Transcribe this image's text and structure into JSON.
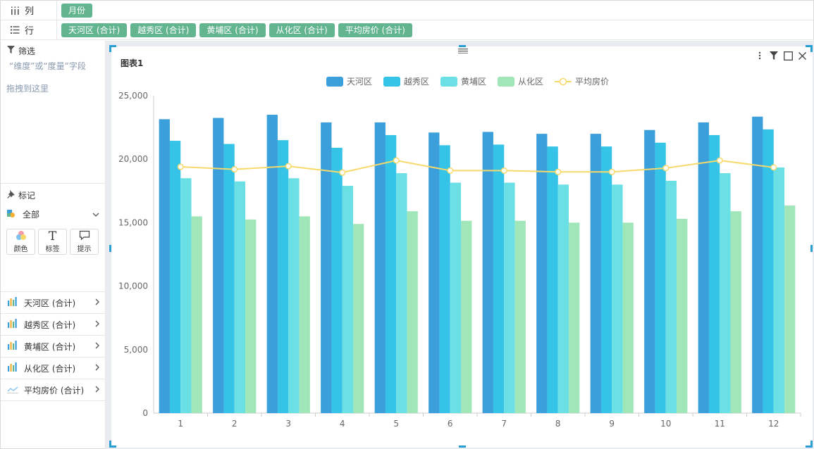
{
  "shelves": {
    "columns": {
      "label": "列",
      "pills": [
        "月份"
      ]
    },
    "rows": {
      "label": "行",
      "pills": [
        "天河区 (合计)",
        "越秀区 (合计)",
        "黄埔区 (合计)",
        "从化区 (合计)",
        "平均房价 (合计)"
      ]
    }
  },
  "filter": {
    "title": "筛选",
    "hint_line1": "“维度”或“度量”字段",
    "hint_line2": "拖拽到这里"
  },
  "marks": {
    "title": "标记",
    "all_label": "全部",
    "buttons": [
      {
        "label": "颜色",
        "icon": "palette-icon"
      },
      {
        "label": "标签",
        "icon": "text-icon"
      },
      {
        "label": "提示",
        "icon": "tooltip-icon"
      }
    ],
    "fields": [
      {
        "label": "天河区 (合计)",
        "icon": "bar-chart-icon"
      },
      {
        "label": "越秀区 (合计)",
        "icon": "bar-chart-icon"
      },
      {
        "label": "黄埔区 (合计)",
        "icon": "bar-chart-icon"
      },
      {
        "label": "从化区 (合计)",
        "icon": "bar-chart-icon"
      },
      {
        "label": "平均房价 (合计)",
        "icon": "line-chart-icon"
      }
    ]
  },
  "card": {
    "title": "图表1"
  },
  "colors": {
    "pill": "#62b58f",
    "handle": "#2a9fd6",
    "series": [
      "#3b9fdb",
      "#35c4e8",
      "#6ae0e4",
      "#a1e6b8"
    ],
    "line": "#f7d96b"
  },
  "chart_data": {
    "type": "bar",
    "categories": [
      "1",
      "2",
      "3",
      "4",
      "5",
      "6",
      "7",
      "8",
      "9",
      "10",
      "11",
      "12"
    ],
    "series": [
      {
        "name": "天河区",
        "type": "bar",
        "values": [
          23150,
          23250,
          23500,
          22900,
          22900,
          22100,
          22150,
          22000,
          22000,
          22300,
          22900,
          23350
        ]
      },
      {
        "name": "越秀区",
        "type": "bar",
        "values": [
          21450,
          21200,
          21500,
          20900,
          21900,
          21100,
          21150,
          21000,
          21000,
          21300,
          21900,
          22350
        ]
      },
      {
        "name": "黄埔区",
        "type": "bar",
        "values": [
          18500,
          18250,
          18500,
          17900,
          18900,
          18150,
          18150,
          18000,
          18000,
          18300,
          18900,
          19350
        ]
      },
      {
        "name": "从化区",
        "type": "bar",
        "values": [
          15500,
          15250,
          15500,
          14900,
          15900,
          15150,
          15150,
          15000,
          15000,
          15300,
          15900,
          16350
        ]
      },
      {
        "name": "平均房价",
        "type": "line",
        "values": [
          19400,
          19200,
          19450,
          18950,
          19900,
          19100,
          19100,
          19000,
          19000,
          19300,
          19900,
          19350
        ]
      }
    ],
    "yticks": [
      "0",
      "5,000",
      "10,000",
      "15,000",
      "20,000",
      "25,000"
    ],
    "ylim": [
      0,
      25000
    ],
    "legend": "top-center",
    "grid": false
  }
}
